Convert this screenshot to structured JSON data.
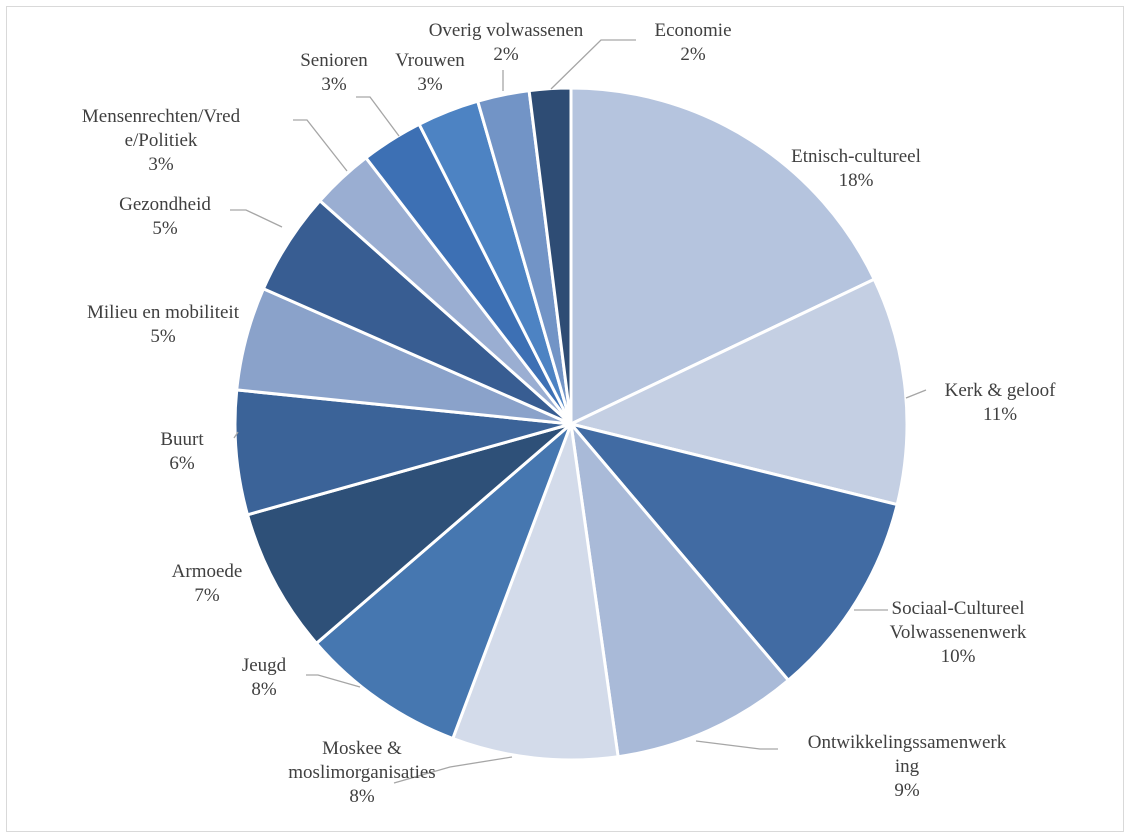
{
  "chart_data": {
    "type": "pie",
    "title": "",
    "slices": [
      {
        "label": [
          "Etnisch-cultureel"
        ],
        "value": 18,
        "pct": "18%",
        "color": "#b5c4de"
      },
      {
        "label": [
          "Kerk & geloof"
        ],
        "value": 11,
        "pct": "11%",
        "color": "#c4cfe3"
      },
      {
        "label": [
          "Sociaal-Cultureel",
          "Volwassenenwerk"
        ],
        "value": 10,
        "pct": "10%",
        "color": "#416ba3"
      },
      {
        "label": [
          "Ontwikkelingssamenwerk",
          "ing"
        ],
        "value": 9,
        "pct": "9%",
        "color": "#a9bad8"
      },
      {
        "label": [
          "Moskee &",
          "moslimorganisaties"
        ],
        "value": 8,
        "pct": "8%",
        "color": "#d3dbea"
      },
      {
        "label": [
          "Jeugd"
        ],
        "value": 8,
        "pct": "8%",
        "color": "#4677b0"
      },
      {
        "label": [
          "Armoede"
        ],
        "value": 7,
        "pct": "7%",
        "color": "#2e5078"
      },
      {
        "label": [
          "Buurt"
        ],
        "value": 6,
        "pct": "6%",
        "color": "#3b6398"
      },
      {
        "label": [
          "Milieu en mobiliteit"
        ],
        "value": 5,
        "pct": "5%",
        "color": "#8aa2ca"
      },
      {
        "label": [
          "Gezondheid"
        ],
        "value": 5,
        "pct": "5%",
        "color": "#385d92"
      },
      {
        "label": [
          "Mensenrechten/Vred",
          "e/Politiek"
        ],
        "value": 3,
        "pct": "3%",
        "color": "#9aaed2"
      },
      {
        "label": [
          "Senioren"
        ],
        "value": 3,
        "pct": "3%",
        "color": "#3d70b4"
      },
      {
        "label": [
          "Vrouwen"
        ],
        "value": 3,
        "pct": "3%",
        "color": "#4d83c3"
      },
      {
        "label": [
          "Overig volwassenen"
        ],
        "value": 2.5,
        "pct": "2%",
        "color": "#7294c6"
      },
      {
        "label": [
          "Economie"
        ],
        "value": 2,
        "pct": "2%",
        "color": "#2e4c74"
      }
    ]
  }
}
